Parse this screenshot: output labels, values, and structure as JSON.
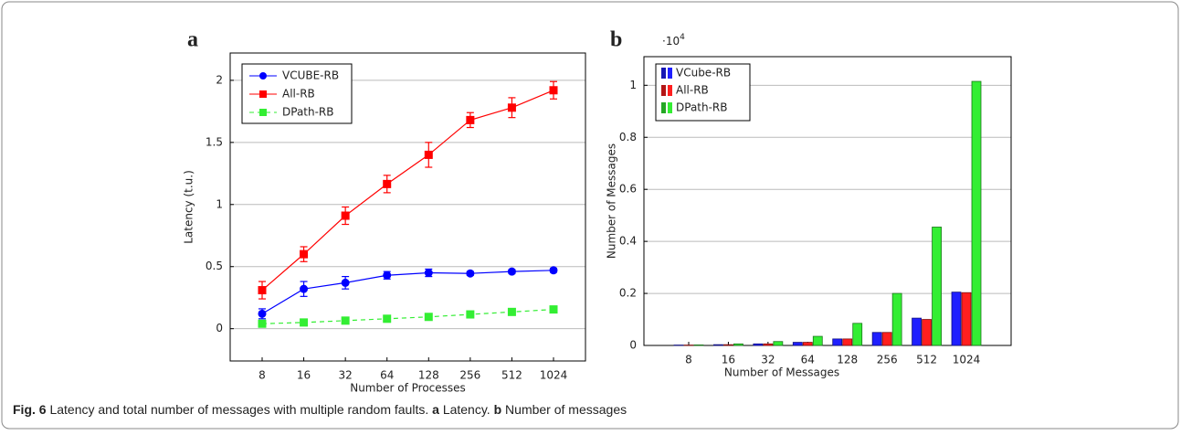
{
  "chart_data": [
    {
      "type": "line",
      "title": "a",
      "xlabel": "Number of Processes",
      "ylabel": "Latency (t.u.)",
      "categories": [
        "8",
        "16",
        "32",
        "64",
        "128",
        "256",
        "512",
        "1024"
      ],
      "ylim": [
        -0.26,
        2.22
      ],
      "yticks": [
        0,
        0.5,
        1,
        1.5,
        2
      ],
      "grid": true,
      "legend": "upper left",
      "series": [
        {
          "name": "VCUBE-RB",
          "color": "#0000ff",
          "marker": "circle",
          "dashed": false,
          "values": [
            0.12,
            0.32,
            0.37,
            0.43,
            0.45,
            0.445,
            0.46,
            0.47
          ],
          "errors": [
            0.04,
            0.06,
            0.05,
            0.03,
            0.03,
            0.015,
            0.015,
            0.015
          ]
        },
        {
          "name": "All-RB",
          "color": "#ff0000",
          "marker": "square",
          "dashed": false,
          "values": [
            0.31,
            0.6,
            0.91,
            1.165,
            1.4,
            1.68,
            1.78,
            1.92
          ],
          "errors": [
            0.07,
            0.06,
            0.07,
            0.07,
            0.1,
            0.06,
            0.08,
            0.07
          ]
        },
        {
          "name": "DPath-RB",
          "color": "#33ee33",
          "marker": "square",
          "dashed": true,
          "values": [
            0.04,
            0.05,
            0.065,
            0.08,
            0.095,
            0.115,
            0.135,
            0.155
          ]
        }
      ]
    },
    {
      "type": "bar",
      "title": "b",
      "xlabel": "Number of Messages",
      "ylabel": "Number of Messages",
      "y_offset_base": "·10",
      "y_offset_exponent": "4",
      "categories": [
        "8",
        "16",
        "32",
        "64",
        "128",
        "256",
        "512",
        "1024"
      ],
      "ylim": [
        0,
        1.11
      ],
      "yticks": [
        0,
        0.2,
        0.4,
        0.6,
        0.8,
        1
      ],
      "grid": true,
      "legend": "upper left",
      "series": [
        {
          "name": "VCube-RB",
          "color": "#1f1fff",
          "values": [
            0.0015,
            0.003,
            0.006,
            0.012,
            0.025,
            0.05,
            0.105,
            0.205
          ]
        },
        {
          "name": "All-RB",
          "color": "#ff1f1f",
          "values": [
            0.0015,
            0.003,
            0.006,
            0.012,
            0.025,
            0.05,
            0.1,
            0.203
          ]
        },
        {
          "name": "DPath-RB",
          "color": "#33ee33",
          "values": [
            0.002,
            0.006,
            0.015,
            0.035,
            0.085,
            0.2,
            0.455,
            1.015
          ]
        }
      ]
    }
  ],
  "caption": {
    "figure": "Fig. 6",
    "text": "Latency and total number of messages with multiple random faults.",
    "a": "a",
    "a_text": "Latency.",
    "b": "b",
    "b_text": "Number of messages"
  }
}
